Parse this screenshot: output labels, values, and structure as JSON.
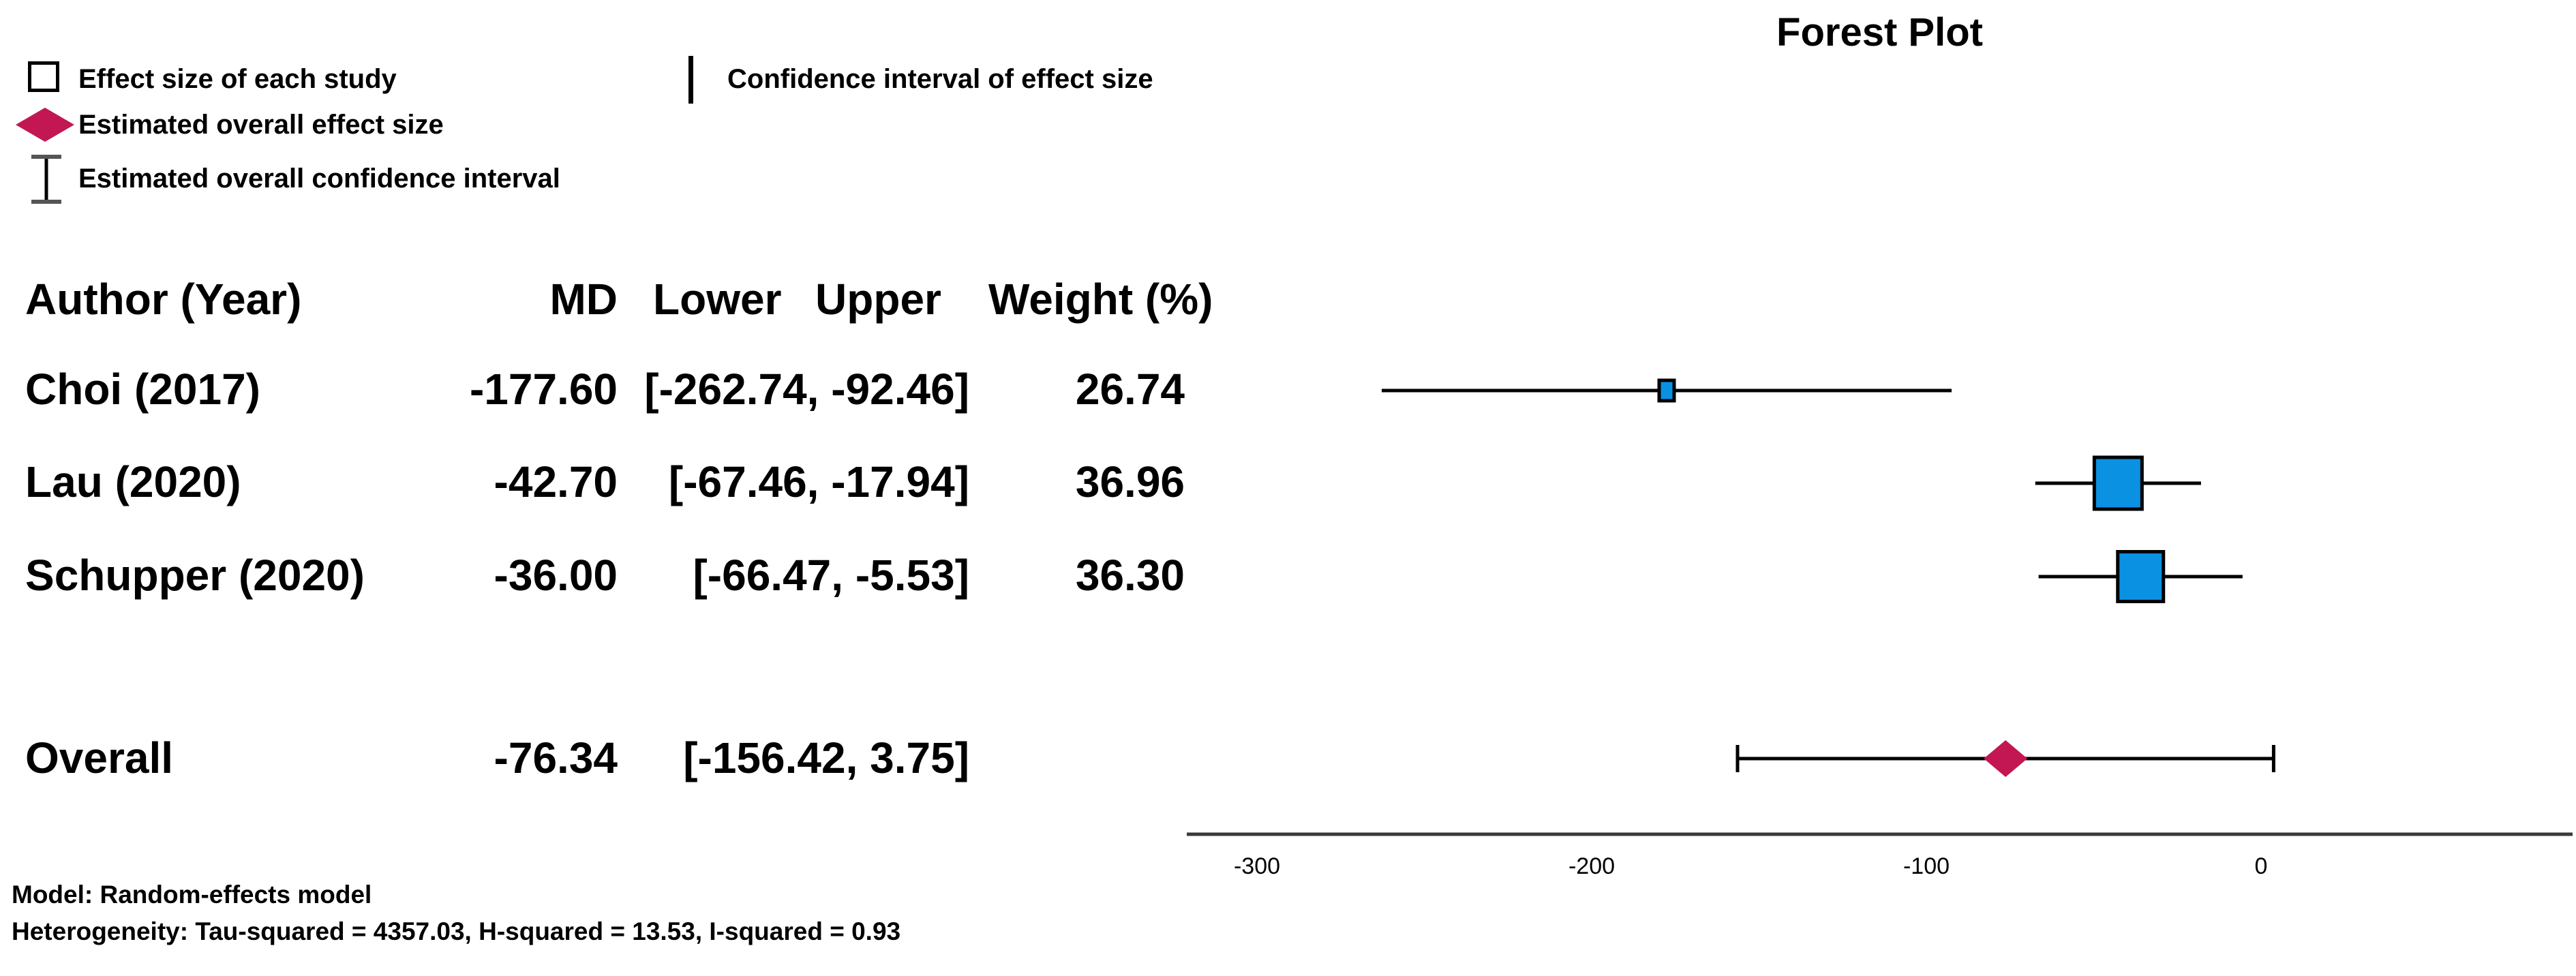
{
  "title": "Forest Plot",
  "legend": {
    "effect_size": "Effect size of each study",
    "ci_effect_size": "Confidence interval of effect size",
    "overall_effect": "Estimated overall effect size",
    "overall_ci": "Estimated overall confidence interval"
  },
  "table": {
    "headers": {
      "author": "Author (Year)",
      "md": "MD",
      "lower": "Lower",
      "upper": "Upper",
      "weight": "Weight (%)"
    },
    "rows": [
      {
        "author": "Choi (2017)",
        "md": "-177.60",
        "ci": "[-262.74, -92.46]",
        "weight": "26.74"
      },
      {
        "author": "Lau (2020)",
        "md": "-42.70",
        "ci": "[-67.46, -17.94]",
        "weight": "36.96"
      },
      {
        "author": "Schupper (2020)",
        "md": "-36.00",
        "ci": "[-66.47, -5.53]",
        "weight": "36.30"
      }
    ],
    "overall_row": {
      "author": "Overall",
      "md": "-76.34",
      "ci": "[-156.42, 3.75]",
      "weight": ""
    }
  },
  "footer": {
    "model": "Model: Random-effects model",
    "heterogeneity": "Heterogeneity: Tau-squared = 4357.03, H-squared = 13.53, I-squared = 0.93"
  },
  "colors": {
    "study_marker": "#0A91E1",
    "overall_marker": "#C21753",
    "axis_line": "#3A3A3A",
    "ci_line": "#000000"
  },
  "chart_data": {
    "type": "forest",
    "title": "Forest Plot",
    "x_ticks": [
      -300,
      -200,
      -100,
      0
    ],
    "x_range": [
      -321,
      93
    ],
    "studies": [
      {
        "name": "Choi (2017)",
        "md": -177.6,
        "lower": -262.74,
        "upper": -92.46,
        "weight": 26.74
      },
      {
        "name": "Lau (2020)",
        "md": -42.7,
        "lower": -67.46,
        "upper": -17.94,
        "weight": 36.96
      },
      {
        "name": "Schupper (2020)",
        "md": -36.0,
        "lower": -66.47,
        "upper": -5.53,
        "weight": 36.3
      }
    ],
    "overall": {
      "name": "Overall",
      "md": -76.34,
      "lower": -156.42,
      "upper": 3.75
    },
    "model": "Random-effects model",
    "heterogeneity": {
      "tau_squared": 4357.03,
      "h_squared": 13.53,
      "i_squared": 0.93
    }
  }
}
